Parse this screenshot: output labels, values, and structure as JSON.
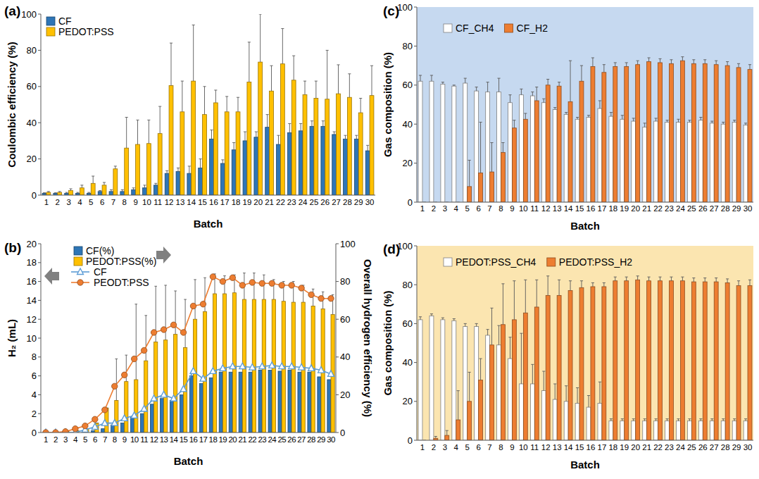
{
  "chart_data": [
    {
      "type": "bar",
      "title": "(a)",
      "x_label": "Batch",
      "y_label": "Coulombic efficiency (%)",
      "categories": [
        "1",
        "2",
        "3",
        "4",
        "5",
        "6",
        "7",
        "8",
        "9",
        "10",
        "11",
        "12",
        "13",
        "14",
        "15",
        "16",
        "17",
        "18",
        "19",
        "20",
        "21",
        "22",
        "23",
        "24",
        "25",
        "26",
        "27",
        "28",
        "29",
        "30"
      ],
      "ylim": [
        0,
        100
      ],
      "yticks": [
        0,
        20,
        40,
        60,
        80,
        100
      ],
      "legend": "upper left",
      "series": [
        {
          "name": "CF",
          "color": "#2e75b6",
          "values": [
            1,
            1,
            1,
            1,
            1,
            2,
            2,
            2,
            3,
            4,
            5.5,
            12,
            13,
            12,
            15,
            31,
            17.5,
            25,
            30,
            32,
            37.5,
            28,
            34.5,
            35.5,
            38,
            38,
            33.5,
            31,
            31,
            24.5
          ],
          "errors": [
            0.3,
            0.3,
            0.5,
            0.5,
            0.5,
            0.5,
            1,
            1,
            1,
            1.5,
            1,
            1.5,
            2,
            4,
            5,
            5,
            2,
            4,
            5,
            3,
            7,
            5,
            5,
            4,
            3,
            3,
            1.5,
            2,
            2,
            3
          ]
        },
        {
          "name": "PEDOT:PSS",
          "color": "#ffc000",
          "values": [
            1.5,
            1.5,
            2.5,
            4,
            6.5,
            5.5,
            14.5,
            26,
            28,
            28.5,
            34,
            60.5,
            46,
            63,
            44.5,
            51,
            46,
            46,
            62.5,
            73.5,
            57.5,
            72.5,
            63.5,
            55.5,
            53.5,
            53,
            56,
            54,
            45.5,
            55
          ],
          "errors": [
            0.5,
            0.5,
            1,
            1.5,
            4,
            1.5,
            1.5,
            17,
            13.5,
            13,
            15,
            23.5,
            17,
            31,
            15.5,
            7,
            8.5,
            8,
            22,
            26.5,
            14,
            19.5,
            13.5,
            7.5,
            9.5,
            27,
            16,
            13,
            8,
            16.5
          ]
        }
      ]
    },
    {
      "type": "bar",
      "title": "(b)",
      "x_label": "Batch",
      "y_label": "H₂ (mL)",
      "y2_label": "Overall hydrogen efficiency (%)",
      "categories": [
        "1",
        "2",
        "3",
        "4",
        "5",
        "6",
        "7",
        "8",
        "9",
        "10",
        "11",
        "12",
        "13",
        "14",
        "15",
        "16",
        "17",
        "18",
        "19",
        "20",
        "21",
        "22",
        "23",
        "24",
        "25",
        "26",
        "27",
        "28",
        "29",
        "30"
      ],
      "ylim": [
        0,
        20
      ],
      "yticks": [
        0,
        2,
        4,
        6,
        8,
        10,
        12,
        14,
        16,
        18,
        20
      ],
      "y2lim": [
        0,
        100
      ],
      "y2ticks": [
        0,
        20,
        40,
        60,
        80,
        100
      ],
      "legend": "upper left",
      "series": [
        {
          "name": "CF(%)",
          "color": "#2e75b6",
          "axis": "y2",
          "values": [
            0,
            0,
            0,
            0,
            0,
            1,
            2,
            4,
            5,
            8,
            10,
            15,
            18,
            17,
            20,
            30,
            26,
            29,
            32,
            32,
            32,
            32,
            33,
            33,
            32.5,
            33,
            32,
            32,
            29.5,
            28
          ]
        },
        {
          "name": "PEDOT:PSS(%)",
          "color": "#ffc000",
          "axis": "y2",
          "values": [
            0,
            0,
            0.5,
            1,
            2,
            5,
            13,
            17,
            27,
            28,
            38,
            48,
            49,
            52,
            45,
            60,
            64,
            73.5,
            73.5,
            74,
            70.5,
            70.5,
            70.5,
            70.5,
            69.5,
            69,
            69,
            67,
            65.5,
            62.5
          ],
          "errors": [
            0,
            0,
            0,
            0,
            0,
            0,
            0,
            22,
            14,
            40,
            24,
            29.5,
            29,
            23,
            25.5,
            21,
            18,
            10.5,
            9.5,
            9.5,
            14,
            14,
            13,
            10.5,
            10.5,
            11,
            9,
            9,
            9,
            10.5
          ]
        },
        {
          "name": "CF",
          "color": "#5b9bd5",
          "type": "line",
          "marker": "triangle",
          "values": [
            0,
            0,
            0,
            0,
            0.3,
            0.6,
            1,
            1,
            1.5,
            1.8,
            2.5,
            3.6,
            4,
            3.6,
            4.6,
            6.5,
            5.7,
            6.5,
            6.8,
            7,
            7,
            6.9,
            7,
            7.1,
            7,
            7,
            6.9,
            6.8,
            6.6,
            6.2
          ]
        },
        {
          "name": "PEODT:PSS",
          "color": "#ed7d31",
          "type": "line",
          "marker": "circle",
          "values": [
            0,
            0,
            0.1,
            0.4,
            0.7,
            1.4,
            2.4,
            4.9,
            6.1,
            7.8,
            8.7,
            10.6,
            10.9,
            11.4,
            10.6,
            13.4,
            13.6,
            16.5,
            16,
            16.4,
            15.6,
            15.9,
            15.8,
            15.8,
            15.6,
            15.6,
            15.3,
            14.6,
            14.2,
            14.2
          ]
        }
      ]
    },
    {
      "type": "bar",
      "title": "(c)",
      "x_label": "Batch",
      "y_label": "Gas composition  (%)",
      "categories": [
        "1",
        "2",
        "3",
        "4",
        "5",
        "6",
        "7",
        "8",
        "9",
        "10",
        "11",
        "12",
        "13",
        "14",
        "15",
        "16",
        "17",
        "18",
        "19",
        "20",
        "21",
        "22",
        "23",
        "24",
        "25",
        "26",
        "27",
        "28",
        "29",
        "30"
      ],
      "ylim": [
        0,
        100
      ],
      "yticks": [
        0,
        20,
        40,
        60,
        80,
        100
      ],
      "legend": "upper left",
      "series": [
        {
          "name": "CF_CH4",
          "color": "#ffffff",
          "values": [
            62,
            62,
            60.5,
            59.5,
            61,
            57,
            56.5,
            56.5,
            51,
            55,
            54.5,
            51,
            47.5,
            45,
            42.5,
            43.5,
            48,
            44,
            42.5,
            41.5,
            38.5,
            41.5,
            41,
            41,
            41,
            42,
            40.5,
            40,
            41,
            39.5
          ],
          "errors": [
            3,
            3,
            1,
            0.5,
            2.5,
            2,
            5,
            7,
            4,
            3,
            2,
            2,
            1,
            1,
            1,
            1,
            4,
            2,
            2,
            1.5,
            2,
            1.5,
            1,
            1.5,
            1,
            1.5,
            1,
            1,
            1,
            1
          ]
        },
        {
          "name": "CF_H2",
          "color": "#ed7d31",
          "values": [
            0,
            0,
            0,
            0,
            8,
            15,
            15.5,
            25.5,
            38,
            42.5,
            52,
            60,
            59.5,
            51.5,
            62,
            69.5,
            66.5,
            69.5,
            69.5,
            70.5,
            72,
            71.5,
            71,
            72.5,
            71,
            71,
            70.5,
            70,
            69,
            68
          ],
          "errors": [
            0,
            0,
            0,
            0,
            13.5,
            26,
            15,
            5,
            4,
            3,
            7,
            3,
            2,
            21,
            8,
            4.5,
            4,
            2,
            2,
            2,
            2,
            2,
            2,
            2,
            2,
            2,
            2,
            2,
            2,
            2.5
          ]
        }
      ]
    },
    {
      "type": "bar",
      "title": "(d)",
      "x_label": "Batch",
      "y_label": "Gas composition  (%)",
      "categories": [
        "1",
        "2",
        "3",
        "4",
        "5",
        "6",
        "7",
        "8",
        "9",
        "10",
        "11",
        "12",
        "13",
        "14",
        "15",
        "16",
        "17",
        "18",
        "19",
        "20",
        "21",
        "22",
        "23",
        "24",
        "25",
        "26",
        "27",
        "28",
        "29",
        "30"
      ],
      "ylim": [
        0,
        100
      ],
      "yticks": [
        0,
        20,
        40,
        60,
        80,
        100
      ],
      "legend": "upper left",
      "series": [
        {
          "name": "PEDOT:PSS_CH4",
          "color": "#ffffff",
          "values": [
            62,
            64,
            62,
            61.5,
            58.5,
            58.5,
            54,
            49,
            42,
            29,
            29,
            25.5,
            21,
            20,
            19,
            17,
            19,
            10,
            10,
            10,
            10,
            10,
            10,
            10,
            10,
            10,
            10,
            10,
            10,
            10
          ],
          "errors": [
            1.5,
            1,
            1,
            1,
            1.5,
            1.5,
            3,
            10,
            11,
            26,
            10,
            10,
            8,
            8,
            8,
            6,
            11,
            1,
            1,
            1,
            1,
            1,
            1,
            1,
            1,
            1,
            1,
            1,
            1,
            1
          ]
        },
        {
          "name": "PEDOT:PSS_H2",
          "color": "#ed7d31",
          "values": [
            0,
            1,
            2.5,
            10.5,
            20,
            31,
            49,
            59.5,
            62,
            65.5,
            68.5,
            74.5,
            74.5,
            77,
            78.5,
            79,
            79,
            82,
            82,
            82.5,
            82,
            82,
            82,
            82,
            81.5,
            81.5,
            81.5,
            81,
            79.5,
            79.5
          ],
          "errors": [
            0,
            1,
            2.5,
            15,
            15,
            11,
            19,
            21,
            20,
            17,
            14,
            10,
            8,
            5,
            3.5,
            2,
            2,
            2,
            2,
            2,
            2,
            2,
            2,
            2,
            2,
            2,
            2,
            2,
            2.5,
            3
          ]
        }
      ]
    }
  ]
}
